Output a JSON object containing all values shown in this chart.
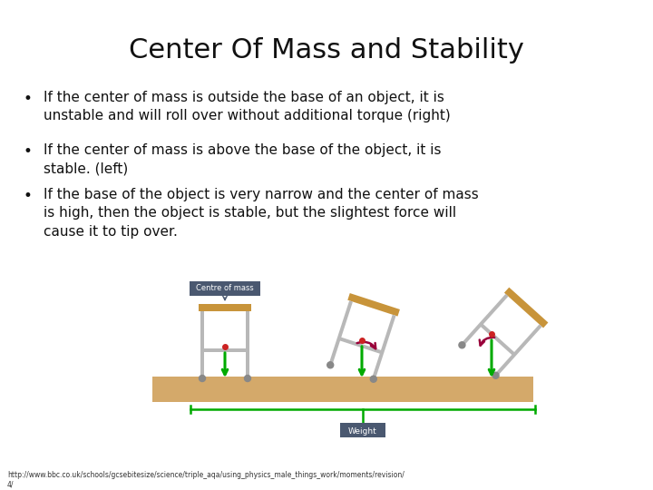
{
  "title": "Center Of Mass and Stability",
  "bullet1": "If the center of mass is outside the base of an object, it is\nunstable and will roll over without additional torque (right)",
  "bullet2": "If the center of mass is above the base of the object, it is\nstable. (left)",
  "bullet3": "If the base of the object is very narrow and the center of mass\nis high, then the object is stable, but the slightest force will\ncause it to tip over.",
  "footer": "http://www.bbc.co.uk/schools/gcsebitesize/science/triple_aqa/using_physics_male_things_work/moments/revision/\n4/",
  "bg_color": "#ffffff",
  "title_color": "#111111",
  "bullet_color": "#111111",
  "footer_color": "#333333",
  "ground_color": "#d4a96a",
  "frame_color": "#b8b8b8",
  "top_bar_color": "#c8943a",
  "green_color": "#00aa00",
  "red_color": "#99003a",
  "label_bg": "#4a5870",
  "label_fg": "#ffffff",
  "foot_color": "#888888"
}
